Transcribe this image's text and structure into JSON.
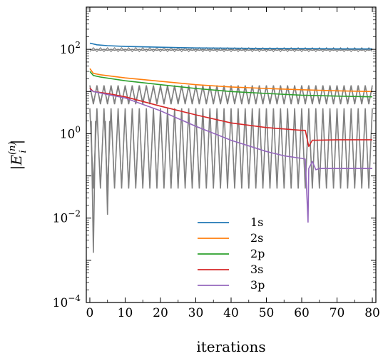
{
  "chart_data": {
    "type": "line",
    "title": "",
    "xlabel": "iterations",
    "ylabel": "|E_i^(n)|",
    "yscale": "log",
    "xlim": [
      -1,
      81
    ],
    "ylim": [
      0.0001,
      1000
    ],
    "xticks": [
      0,
      10,
      20,
      30,
      40,
      50,
      60,
      70,
      80
    ],
    "yticks": [
      {
        "value": 0.0001,
        "base": "10",
        "exp": "−4"
      },
      {
        "value": 0.01,
        "base": "10",
        "exp": "−2"
      },
      {
        "value": 1,
        "base": "10",
        "exp": "0"
      },
      {
        "value": 100,
        "base": "10",
        "exp": "2"
      }
    ],
    "grid": false,
    "legend_position": "bottom-center",
    "series": [
      {
        "name": "1s",
        "color": "#1f77b4",
        "x": [
          0,
          2,
          5,
          10,
          20,
          30,
          40,
          50,
          60,
          70,
          80
        ],
        "y": [
          140,
          128,
          122,
          117,
          112,
          108,
          106,
          105,
          104,
          103,
          102
        ]
      },
      {
        "name": "2s",
        "color": "#ff7f0e",
        "x": [
          0,
          1,
          3,
          10,
          20,
          30,
          40,
          50,
          60,
          70,
          80
        ],
        "y": [
          35,
          27,
          25,
          21,
          17.5,
          14.5,
          12.8,
          11.8,
          11,
          10.4,
          10
        ]
      },
      {
        "name": "2p",
        "color": "#2ca02c",
        "x": [
          0,
          1,
          3,
          10,
          20,
          30,
          40,
          50,
          60,
          70,
          80
        ],
        "y": [
          30,
          24,
          22,
          18,
          14.5,
          11.8,
          10,
          9,
          8.2,
          7.8,
          7.5
        ]
      },
      {
        "name": "3s",
        "color": "#d62728",
        "x": [
          0,
          1,
          5,
          10,
          20,
          30,
          40,
          50,
          60,
          61,
          62,
          63,
          64,
          70,
          80
        ],
        "y": [
          12,
          10,
          9,
          7.5,
          4.5,
          2.8,
          1.8,
          1.4,
          1.2,
          1.2,
          0.5,
          0.7,
          0.7,
          0.72,
          0.72
        ]
      },
      {
        "name": "3p",
        "color": "#9467bd",
        "x": [
          0,
          1,
          5,
          10,
          20,
          30,
          40,
          50,
          55,
          60,
          61,
          61.8,
          62,
          63,
          64,
          65,
          70,
          80
        ],
        "y": [
          11,
          10,
          8.5,
          7,
          3.5,
          1.5,
          0.7,
          0.38,
          0.3,
          0.26,
          0.25,
          0.008,
          0.15,
          0.22,
          0.14,
          0.15,
          0.15,
          0.15
        ]
      }
    ],
    "background_oscillations": {
      "color": "#808080",
      "x_start": 0,
      "x_end": 80,
      "period": 2,
      "bands": [
        {
          "high": 100,
          "low": 95
        },
        {
          "high": 14,
          "low": 5
        },
        {
          "high": 4,
          "low": 0.05
        }
      ],
      "spikes": [
        {
          "x": 1,
          "y": 0.0015
        },
        {
          "x": 5,
          "y": 0.012
        }
      ]
    }
  }
}
